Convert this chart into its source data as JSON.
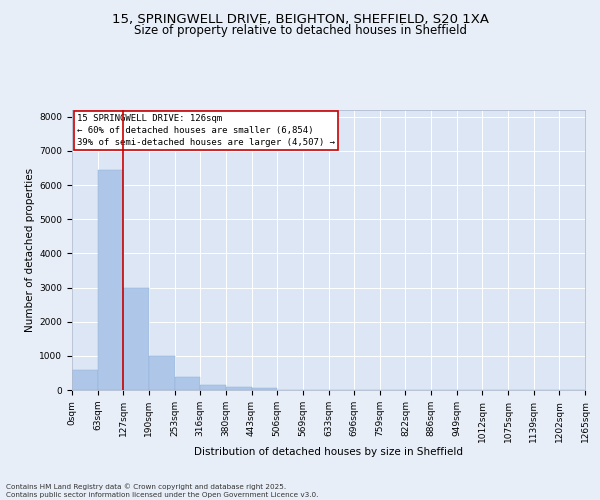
{
  "title_line1": "15, SPRINGWELL DRIVE, BEIGHTON, SHEFFIELD, S20 1XA",
  "title_line2": "Size of property relative to detached houses in Sheffield",
  "xlabel": "Distribution of detached houses by size in Sheffield",
  "ylabel": "Number of detached properties",
  "bar_color": "#aec6e8",
  "marker_line_color": "#cc0000",
  "marker_bin_index": 2,
  "annotation_text": "15 SPRINGWELL DRIVE: 126sqm\n← 60% of detached houses are smaller (6,854)\n39% of semi-detached houses are larger (4,507) →",
  "annotation_box_color": "#cc0000",
  "bin_labels": [
    "0sqm",
    "63sqm",
    "127sqm",
    "190sqm",
    "253sqm",
    "316sqm",
    "380sqm",
    "443sqm",
    "506sqm",
    "569sqm",
    "633sqm",
    "696sqm",
    "759sqm",
    "822sqm",
    "886sqm",
    "949sqm",
    "1012sqm",
    "1075sqm",
    "1139sqm",
    "1202sqm",
    "1265sqm"
  ],
  "bar_heights": [
    600,
    6450,
    3000,
    1000,
    380,
    160,
    80,
    50,
    0,
    0,
    0,
    0,
    0,
    0,
    0,
    0,
    0,
    0,
    0,
    0
  ],
  "ylim": [
    0,
    8200
  ],
  "yticks": [
    0,
    1000,
    2000,
    3000,
    4000,
    5000,
    6000,
    7000,
    8000
  ],
  "background_color": "#e8eef8",
  "plot_bg_color": "#dce6f5",
  "footer_text": "Contains HM Land Registry data © Crown copyright and database right 2025.\nContains public sector information licensed under the Open Government Licence v3.0.",
  "grid_color": "#ffffff",
  "title_fontsize": 9.5,
  "subtitle_fontsize": 8.5,
  "axis_label_fontsize": 7.5,
  "tick_fontsize": 6.5,
  "annotation_fontsize": 6.5,
  "footer_fontsize": 5.2
}
